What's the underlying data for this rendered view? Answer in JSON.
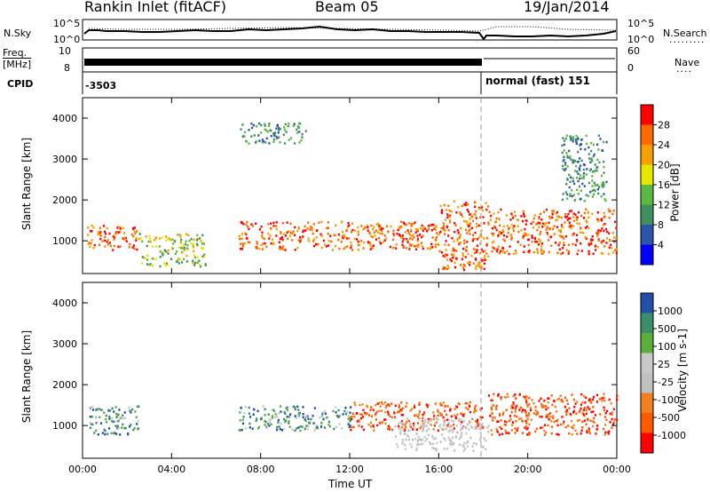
{
  "header": {
    "station": "Rankin Inlet (fitACF)",
    "beam": "Beam 05",
    "date": "19/Jan/2014"
  },
  "top_panels": {
    "nsky_label": "N.Sky",
    "nsearch_label": "N.Search",
    "noise_ticks": [
      "10^5",
      "10^0"
    ],
    "freq_label_line1": "Freq.",
    "freq_label_line2": "[MHz]",
    "freq_ticks": [
      "10",
      "8"
    ],
    "nave_label": "Nave",
    "nave_ticks": [
      "60",
      "0"
    ],
    "cpid_label": "CPID",
    "cpid_first": "-3503",
    "cpid_second": "normal (fast) 151"
  },
  "colors": {
    "power_scale": [
      "#0000ff",
      "#2b55a8",
      "#3f8f5f",
      "#5aba3f",
      "#e6e600",
      "#f5a000",
      "#ff6a00",
      "#ff0000"
    ],
    "velocity_scale": [
      "#ff0000",
      "#ff5a00",
      "#f08020",
      "#c0c0c0",
      "#c8c8c8",
      "#5ab03a",
      "#3a8f6a",
      "#2050a8"
    ]
  },
  "chart_data": [
    {
      "type": "heatmap",
      "title": "Power",
      "xlabel": "",
      "ylabel": "Slant Range [km]",
      "x_ticks": [
        "00:00",
        "04:00",
        "08:00",
        "12:00",
        "16:00",
        "20:00",
        "00:00"
      ],
      "y_ticks": [
        "1000",
        "2000",
        "3000",
        "4000"
      ],
      "ylim": [
        200,
        4500
      ],
      "colorbar": {
        "label": "Power [dB]",
        "ticks": [
          "4",
          "8",
          "12",
          "16",
          "20",
          "24",
          "28"
        ],
        "range": [
          0,
          32
        ]
      },
      "regions": [
        {
          "t": [
            0.2,
            2.5
          ],
          "r": [
            800,
            1400
          ],
          "level": "high"
        },
        {
          "t": [
            2.5,
            5.5
          ],
          "r": [
            400,
            1200
          ],
          "level": "mid"
        },
        {
          "t": [
            7.0,
            16.0
          ],
          "r": [
            800,
            1500
          ],
          "level": "high"
        },
        {
          "t": [
            16.0,
            18.2
          ],
          "r": [
            300,
            2000
          ],
          "level": "high"
        },
        {
          "t": [
            18.2,
            24.0
          ],
          "r": [
            700,
            1800
          ],
          "level": "high"
        },
        {
          "t": [
            7.0,
            10.0
          ],
          "r": [
            3400,
            3900
          ],
          "level": "low"
        },
        {
          "t": [
            21.5,
            23.5
          ],
          "r": [
            2000,
            3600
          ],
          "level": "low"
        }
      ],
      "grid": false
    },
    {
      "type": "heatmap",
      "title": "Velocity",
      "xlabel": "Time UT",
      "ylabel": "Slant Range [km]",
      "x_ticks": [
        "00:00",
        "04:00",
        "08:00",
        "12:00",
        "16:00",
        "20:00",
        "00:00"
      ],
      "y_ticks": [
        "1000",
        "2000",
        "3000",
        "4000"
      ],
      "ylim": [
        200,
        4500
      ],
      "colorbar": {
        "label": "Velocity [m s-1]",
        "ticks": [
          "1000",
          "500",
          "100",
          "25",
          "-25",
          "-100",
          "-500",
          "-1000"
        ],
        "range": [
          -1200,
          1200
        ]
      },
      "regions": [
        {
          "t": [
            0.2,
            2.5
          ],
          "r": [
            800,
            1500
          ],
          "level": "positive"
        },
        {
          "t": [
            7.0,
            12.0
          ],
          "r": [
            900,
            1500
          ],
          "level": "positive"
        },
        {
          "t": [
            12.0,
            18.0
          ],
          "r": [
            900,
            1600
          ],
          "level": "negative"
        },
        {
          "t": [
            14.0,
            18.2
          ],
          "r": [
            400,
            1200
          ],
          "level": "near-zero"
        },
        {
          "t": [
            18.2,
            24.0
          ],
          "r": [
            800,
            1800
          ],
          "level": "negative"
        }
      ],
      "grid": false
    }
  ]
}
